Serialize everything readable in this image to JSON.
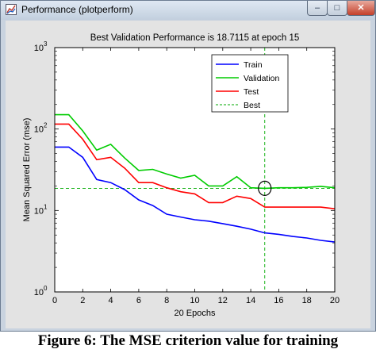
{
  "window": {
    "title": "Performance (plotperform)",
    "buttons": {
      "minimize": "–",
      "maximize": "□",
      "close": "✕"
    }
  },
  "caption": "Figure 6: The MSE criterion value for training",
  "chart_data": {
    "type": "line",
    "title": "Best Validation Performance is 18.7115 at epoch 15",
    "xlabel": "20 Epochs",
    "ylabel": "Mean Squared Error  (mse)",
    "yscale": "log",
    "xlim": [
      0,
      20
    ],
    "ylim": [
      1,
      1000
    ],
    "xticks": [
      "0",
      "2",
      "4",
      "6",
      "8",
      "10",
      "12",
      "14",
      "16",
      "18",
      "20"
    ],
    "yticks": [
      {
        "base": "10",
        "exp": "0"
      },
      {
        "base": "10",
        "exp": "1"
      },
      {
        "base": "10",
        "exp": "2"
      },
      {
        "base": "10",
        "exp": "3"
      }
    ],
    "legend_position": "top-right",
    "x": [
      0,
      1,
      2,
      3,
      4,
      5,
      6,
      7,
      8,
      9,
      10,
      11,
      12,
      13,
      14,
      15,
      16,
      17,
      18,
      19,
      20
    ],
    "series": [
      {
        "name": "Train",
        "color": "#0000ff",
        "style": "solid",
        "values": [
          60,
          60,
          45,
          24,
          22,
          18,
          13.5,
          11.5,
          9,
          8.3,
          7.7,
          7.4,
          6.9,
          6.4,
          5.9,
          5.3,
          5.1,
          4.8,
          4.6,
          4.3,
          4.1
        ]
      },
      {
        "name": "Validation",
        "color": "#00cc00",
        "style": "solid",
        "values": [
          150,
          150,
          95,
          55,
          65,
          44,
          31,
          32,
          28,
          25,
          27,
          20,
          20,
          26,
          19,
          18.7,
          19,
          19,
          19.2,
          19.8,
          19
        ]
      },
      {
        "name": "Test",
        "color": "#ff0000",
        "style": "solid",
        "values": [
          115,
          115,
          75,
          42,
          45,
          33,
          22,
          22,
          19,
          17,
          16,
          12.5,
          12.5,
          15,
          14,
          11,
          11,
          11,
          11,
          11,
          10.5
        ]
      },
      {
        "name": "Best",
        "color": "#00aa00",
        "style": "dashed"
      }
    ],
    "best": {
      "epoch": 15,
      "value": 18.7115
    }
  }
}
